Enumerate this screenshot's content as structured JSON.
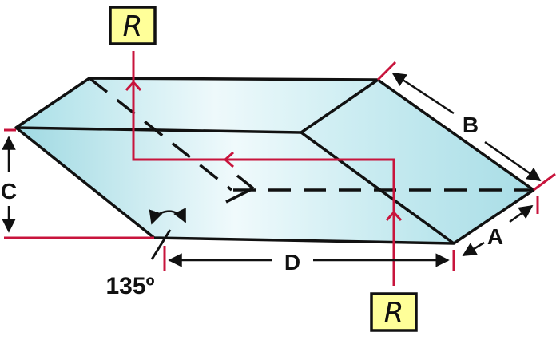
{
  "diagram": {
    "subject": "Rhomboid prism",
    "labels": {
      "a": "A",
      "b": "B",
      "c": "C",
      "d": "D",
      "angle": "135º",
      "input_marker": "R",
      "output_marker": "R"
    },
    "colors": {
      "glass_light": "#eaf9fb",
      "glass_dark": "#a4dde6",
      "edge": "#111111",
      "ray": "#c8143c",
      "marker_fill": "#ffff99"
    }
  }
}
